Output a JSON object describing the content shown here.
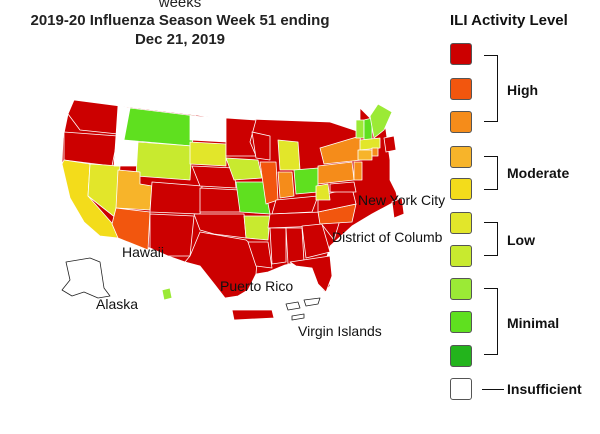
{
  "header": {
    "top_fragment": "weeks",
    "title_line1": "2019-20 Influenza Season Week 51 ending",
    "title_line2": "Dec 21, 2019"
  },
  "legend": {
    "title": "ILI Activity Level",
    "swatches": [
      {
        "color": "#cc0000"
      },
      {
        "color": "#f2560e"
      },
      {
        "color": "#f58c1a"
      },
      {
        "color": "#f7b42a"
      },
      {
        "color": "#f3dc1b"
      },
      {
        "color": "#e2e62a"
      },
      {
        "color": "#c8ea2f"
      },
      {
        "color": "#9bea36"
      },
      {
        "color": "#5fe01f"
      },
      {
        "color": "#23b41c"
      },
      {
        "color": "#ffffff"
      }
    ],
    "groups": {
      "high": "High",
      "moderate": "Moderate",
      "low": "Low",
      "minimal": "Minimal",
      "insufficient": "Insufficient"
    }
  },
  "map_labels": {
    "new_york_city": "New York City",
    "district_of_columbia": "District of Columb",
    "hawaii": "Hawaii",
    "alaska": "Alaska",
    "puerto_rico": "Puerto Rico",
    "virgin_islands": "Virgin Islands"
  }
}
